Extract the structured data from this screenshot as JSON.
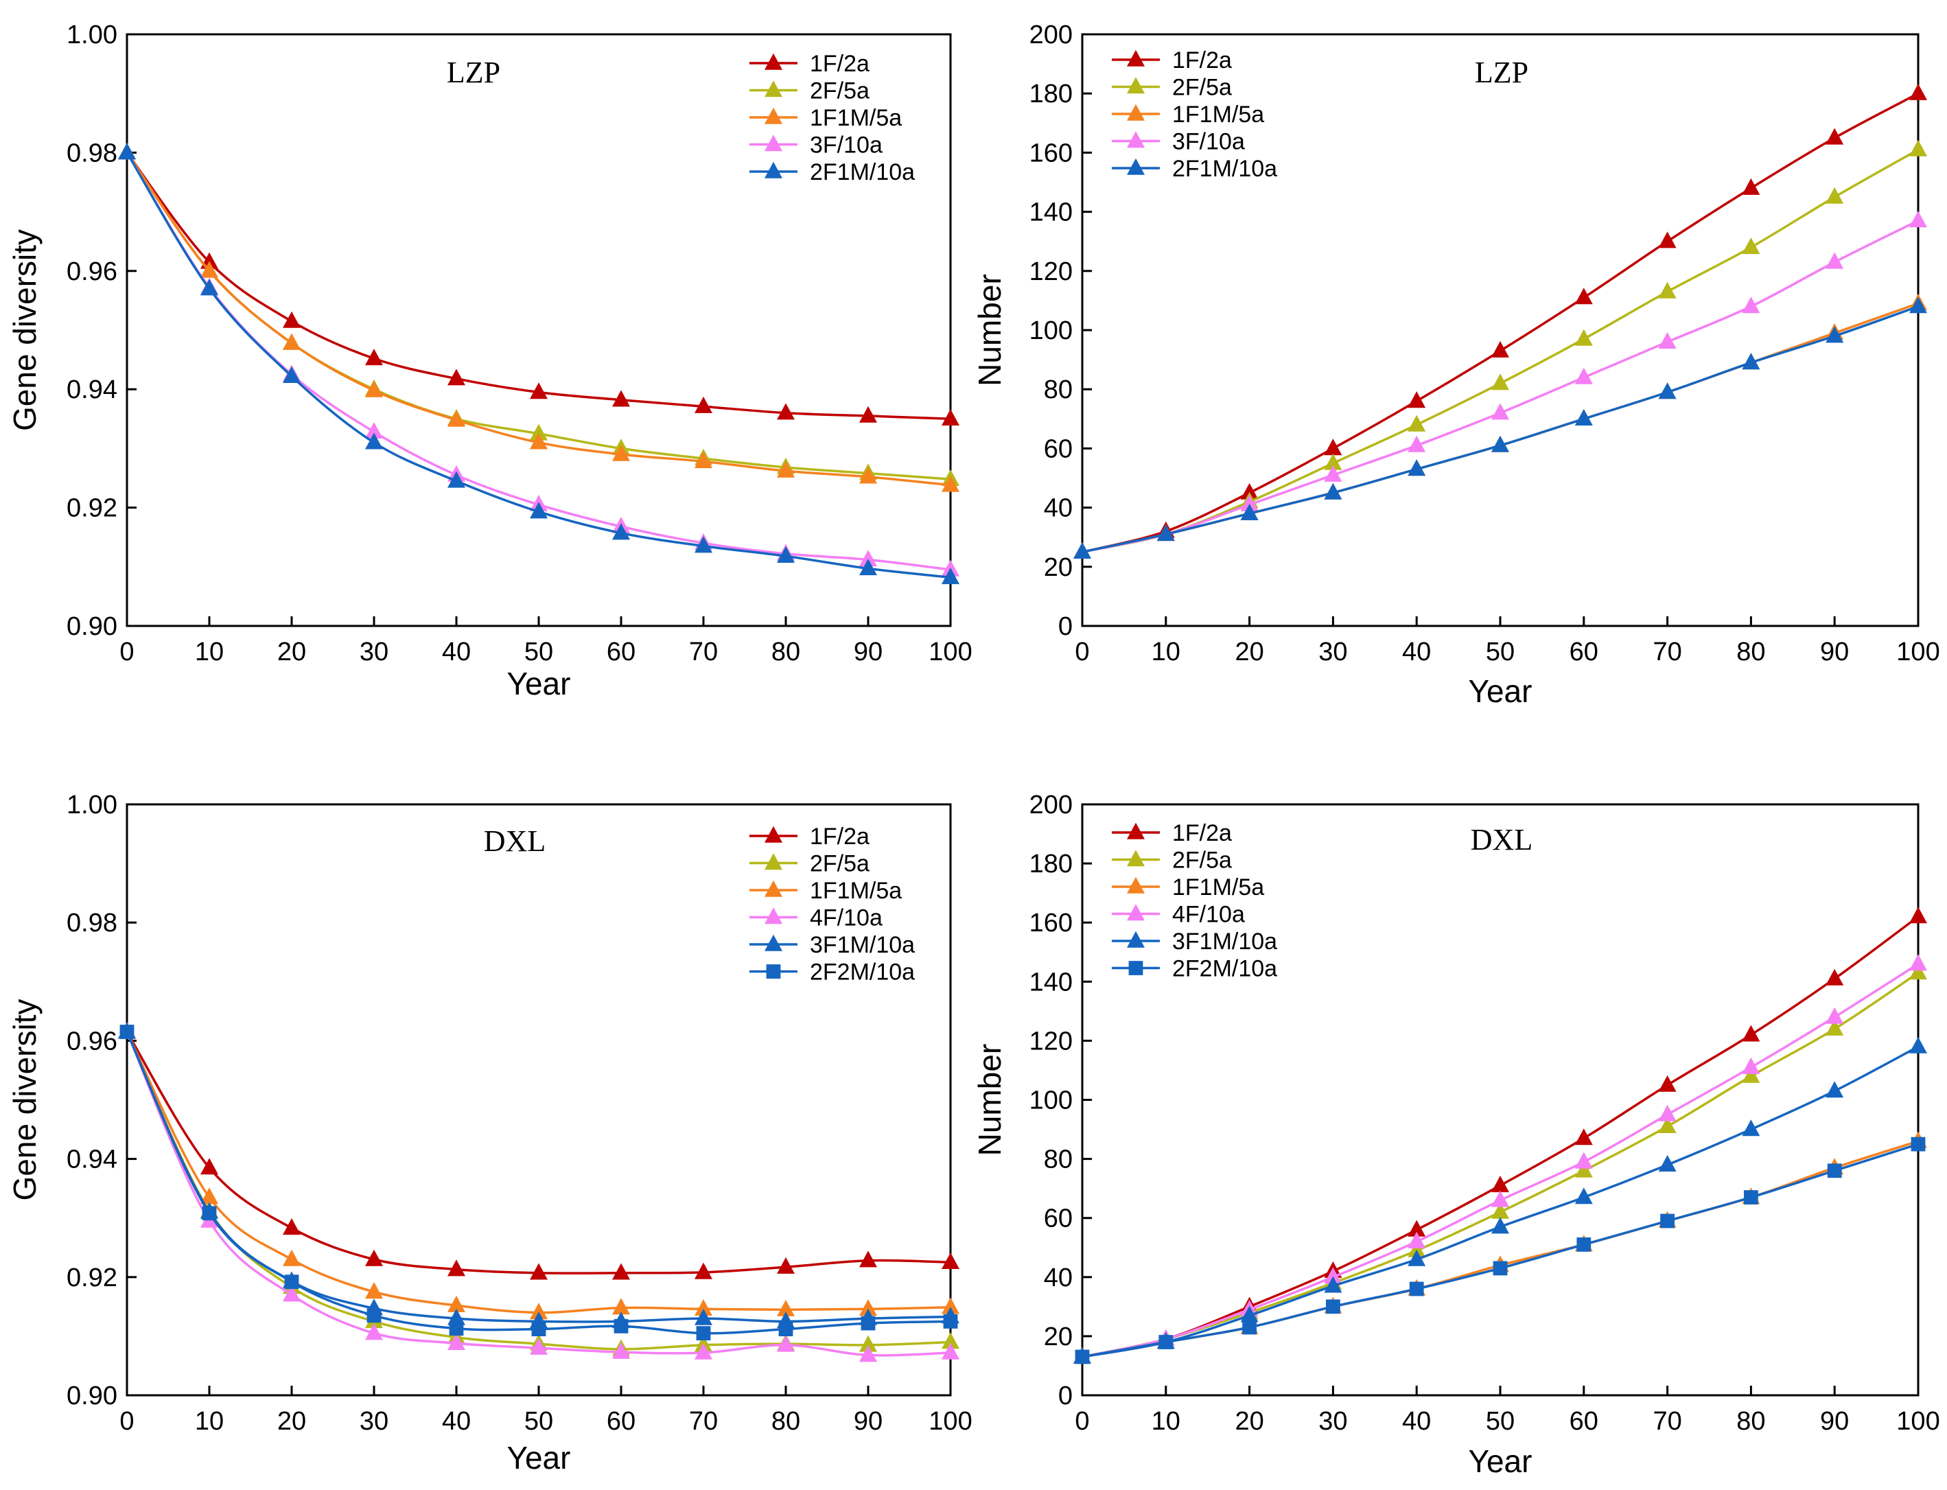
{
  "colors": {
    "1F/2a": "#c00000",
    "2F/5a": "#b5b818",
    "1F1M/5a": "#f5821f",
    "3F/10a": "#f57ef5",
    "4F/10a": "#f57ef5",
    "2F1M/10a": "#1565c0",
    "3F1M/10a": "#1565c0",
    "2F2M/10a": "#1565c0"
  },
  "chart_data": [
    {
      "type": "line",
      "title": "LZP",
      "xlabel": "Year",
      "ylabel": "Gene diversity",
      "xlim": [
        0,
        100
      ],
      "ylim": [
        0.9,
        1.0
      ],
      "x_ticks": [
        "0",
        "10",
        "20",
        "30",
        "40",
        "50",
        "60",
        "70",
        "80",
        "90",
        "100"
      ],
      "y_ticks": [
        "0.90",
        "0.92",
        "0.94",
        "0.96",
        "0.98",
        "1.00"
      ],
      "legend_position": "top-right",
      "x": [
        0,
        10,
        20,
        30,
        40,
        50,
        60,
        70,
        80,
        90,
        100
      ],
      "series": [
        {
          "name": "1F/2a",
          "marker": "triangle",
          "values": [
            0.98,
            0.9615,
            0.9515,
            0.9452,
            0.9418,
            0.9395,
            0.9382,
            0.9371,
            0.936,
            0.9355,
            0.935
          ]
        },
        {
          "name": "2F/5a",
          "marker": "triangle",
          "values": [
            0.98,
            0.96,
            0.9478,
            0.94,
            0.935,
            0.9325,
            0.93,
            0.9283,
            0.9268,
            0.9258,
            0.9248
          ]
        },
        {
          "name": "1F1M/5a",
          "marker": "triangle",
          "values": [
            0.98,
            0.96,
            0.9478,
            0.9398,
            0.9348,
            0.931,
            0.929,
            0.9278,
            0.9262,
            0.9252,
            0.9238
          ]
        },
        {
          "name": "3F/10a",
          "marker": "triangle",
          "values": [
            0.98,
            0.9572,
            0.9425,
            0.9328,
            0.9255,
            0.9205,
            0.9168,
            0.914,
            0.9122,
            0.9112,
            0.9095
          ]
        },
        {
          "name": "2F1M/10a",
          "marker": "triangle",
          "values": [
            0.98,
            0.957,
            0.9422,
            0.931,
            0.9245,
            0.9193,
            0.9157,
            0.9135,
            0.9118,
            0.9097,
            0.9082
          ]
        }
      ]
    },
    {
      "type": "line",
      "title": "LZP",
      "xlabel": "Year",
      "ylabel": "Number",
      "xlim": [
        0,
        100
      ],
      "ylim": [
        0,
        200
      ],
      "x_ticks": [
        "0",
        "10",
        "20",
        "30",
        "40",
        "50",
        "60",
        "70",
        "80",
        "90",
        "100"
      ],
      "y_ticks": [
        "0",
        "20",
        "40",
        "60",
        "80",
        "100",
        "120",
        "140",
        "160",
        "180",
        "200"
      ],
      "legend_position": "top-left",
      "x": [
        0,
        10,
        20,
        30,
        40,
        50,
        60,
        70,
        80,
        90,
        100
      ],
      "series": [
        {
          "name": "1F/2a",
          "marker": "triangle",
          "values": [
            25,
            32,
            45,
            60,
            76,
            93,
            111,
            130,
            148,
            165,
            180
          ]
        },
        {
          "name": "2F/5a",
          "marker": "triangle",
          "values": [
            25,
            31,
            42,
            55,
            68,
            82,
            97,
            113,
            128,
            145,
            161
          ]
        },
        {
          "name": "1F1M/5a",
          "marker": "triangle",
          "values": [
            25,
            31,
            38,
            45,
            53,
            61,
            70,
            79,
            89,
            99,
            109
          ]
        },
        {
          "name": "3F/10a",
          "marker": "triangle",
          "values": [
            25,
            31,
            41,
            51,
            61,
            72,
            84,
            96,
            108,
            123,
            137
          ]
        },
        {
          "name": "2F1M/10a",
          "marker": "triangle",
          "values": [
            25,
            31,
            38,
            45,
            53,
            61,
            70,
            79,
            89,
            98,
            108
          ]
        }
      ]
    },
    {
      "type": "line",
      "title": "DXL",
      "xlabel": "Year",
      "ylabel": "Gene diversity",
      "xlim": [
        0,
        100
      ],
      "ylim": [
        0.9,
        1.0
      ],
      "x_ticks": [
        "0",
        "10",
        "20",
        "30",
        "40",
        "50",
        "60",
        "70",
        "80",
        "90",
        "100"
      ],
      "y_ticks": [
        "0.90",
        "0.92",
        "0.94",
        "0.96",
        "0.98",
        "1.00"
      ],
      "legend_position": "top-right",
      "x": [
        0,
        10,
        20,
        30,
        40,
        50,
        60,
        70,
        80,
        90,
        100
      ],
      "series": [
        {
          "name": "1F/2a",
          "marker": "triangle",
          "values": [
            0.9615,
            0.9385,
            0.9283,
            0.923,
            0.9213,
            0.9207,
            0.9207,
            0.9208,
            0.9217,
            0.9228,
            0.9225
          ]
        },
        {
          "name": "2F/5a",
          "marker": "triangle",
          "values": [
            0.9615,
            0.9312,
            0.9183,
            0.9125,
            0.9098,
            0.9087,
            0.9078,
            0.9085,
            0.9087,
            0.9085,
            0.909
          ]
        },
        {
          "name": "1F1M/5a",
          "marker": "triangle",
          "values": [
            0.9615,
            0.9335,
            0.923,
            0.9175,
            0.9152,
            0.914,
            0.9148,
            0.9146,
            0.9145,
            0.9146,
            0.9149
          ]
        },
        {
          "name": "4F/10a",
          "marker": "triangle",
          "values": [
            0.9615,
            0.9295,
            0.917,
            0.9105,
            0.9088,
            0.908,
            0.9073,
            0.9072,
            0.9085,
            0.9068,
            0.9072
          ]
        },
        {
          "name": "3F1M/10a",
          "marker": "triangle",
          "values": [
            0.9615,
            0.931,
            0.9193,
            0.9147,
            0.913,
            0.9125,
            0.9125,
            0.913,
            0.9125,
            0.913,
            0.9133
          ]
        },
        {
          "name": "2F2M/10a",
          "marker": "square",
          "values": [
            0.9615,
            0.9308,
            0.9192,
            0.9135,
            0.9113,
            0.9112,
            0.9117,
            0.9105,
            0.9112,
            0.9122,
            0.9125
          ]
        }
      ]
    },
    {
      "type": "line",
      "title": "DXL",
      "xlabel": "Year",
      "ylabel": "Number",
      "xlim": [
        0,
        100
      ],
      "ylim": [
        0,
        200
      ],
      "x_ticks": [
        "0",
        "10",
        "20",
        "30",
        "40",
        "50",
        "60",
        "70",
        "80",
        "90",
        "100"
      ],
      "y_ticks": [
        "0",
        "20",
        "40",
        "60",
        "80",
        "100",
        "120",
        "140",
        "160",
        "180",
        "200"
      ],
      "legend_position": "top-left",
      "x": [
        0,
        10,
        20,
        30,
        40,
        50,
        60,
        70,
        80,
        90,
        100
      ],
      "series": [
        {
          "name": "1F/2a",
          "marker": "triangle",
          "values": [
            13,
            19,
            30,
            42,
            56,
            71,
            87,
            105,
            122,
            141,
            162
          ]
        },
        {
          "name": "2F/5a",
          "marker": "triangle",
          "values": [
            13,
            19,
            28,
            38,
            49,
            62,
            76,
            91,
            108,
            124,
            143
          ]
        },
        {
          "name": "1F1M/5a",
          "marker": "triangle",
          "values": [
            13,
            18,
            23,
            30,
            36,
            44,
            51,
            59,
            67,
            77,
            86
          ]
        },
        {
          "name": "4F/10a",
          "marker": "triangle",
          "values": [
            13,
            19,
            29,
            40,
            52,
            66,
            79,
            95,
            111,
            128,
            146
          ]
        },
        {
          "name": "3F1M/10a",
          "marker": "triangle",
          "values": [
            13,
            18,
            27,
            37,
            46,
            57,
            67,
            78,
            90,
            103,
            118
          ]
        },
        {
          "name": "2F2M/10a",
          "marker": "square",
          "values": [
            13,
            18,
            23,
            30,
            36,
            43,
            51,
            59,
            67,
            76,
            85
          ]
        }
      ]
    }
  ]
}
